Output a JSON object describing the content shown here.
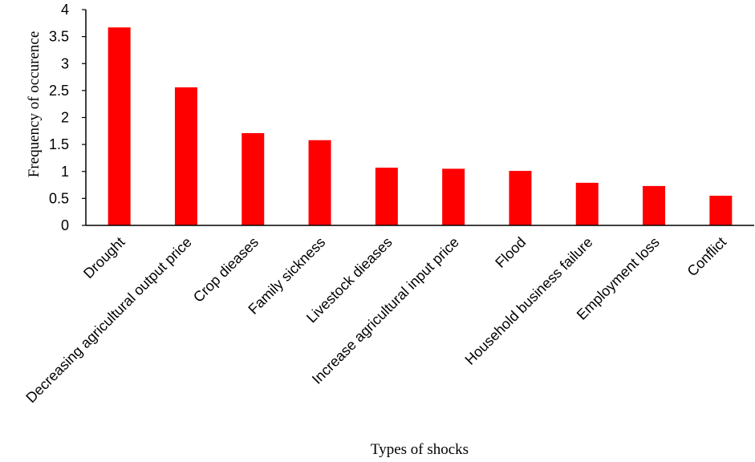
{
  "chart_data": {
    "type": "bar",
    "categories": [
      "Drought",
      "Decreasing agricultural output price",
      "Crop dieases",
      "Family sickness",
      "Livestock dieases",
      "Increase agricultural input price",
      "Flood",
      "Household business failure",
      "Employment loss",
      "Conflict"
    ],
    "values": [
      3.67,
      2.56,
      1.71,
      1.58,
      1.07,
      1.05,
      1.01,
      0.79,
      0.73,
      0.55
    ],
    "xlabel": "Types of shocks",
    "ylabel": "Frequency of occurence",
    "ylim": [
      0,
      4
    ],
    "yticks": [
      "0",
      "0.5",
      "1",
      "1.5",
      "2",
      "2.5",
      "3",
      "3.5",
      "4"
    ],
    "grid": false,
    "legend": false,
    "bar_color": "#ff0000",
    "axis_color": "#000000"
  }
}
